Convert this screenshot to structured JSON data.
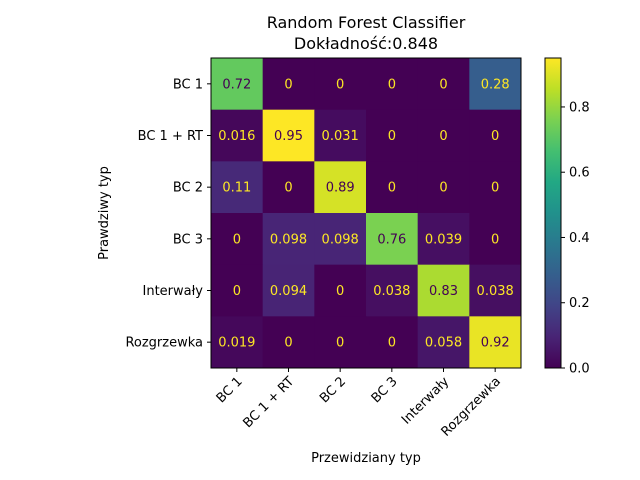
{
  "chart_data": {
    "type": "heatmap",
    "title": "Random Forest Classifier",
    "subtitle": "Dokładność:0.848",
    "xlabel": "Przewidziany typ",
    "ylabel": "Prawdziwy typ",
    "x_categories": [
      "BC 1",
      "BC 1 + RT",
      "BC 2",
      "BC 3",
      "Interwały",
      "Rozgrzewka"
    ],
    "y_categories": [
      "BC 1",
      "BC 1 + RT",
      "BC 2",
      "BC 3",
      "Interwały",
      "Rozgrzewka"
    ],
    "cell_labels": [
      [
        "0.72",
        "0",
        "0",
        "0",
        "0",
        "0.28"
      ],
      [
        "0.016",
        "0.95",
        "0.031",
        "0",
        "0",
        "0"
      ],
      [
        "0.11",
        "0",
        "0.89",
        "0",
        "0",
        "0"
      ],
      [
        "0",
        "0.098",
        "0.098",
        "0.76",
        "0.039",
        "0"
      ],
      [
        "0",
        "0.094",
        "0",
        "0.038",
        "0.83",
        "0.038"
      ],
      [
        "0.019",
        "0",
        "0",
        "0",
        "0.058",
        "0.92"
      ]
    ],
    "values": [
      [
        0.72,
        0,
        0,
        0,
        0,
        0.28
      ],
      [
        0.016,
        0.95,
        0.031,
        0,
        0,
        0
      ],
      [
        0.11,
        0,
        0.89,
        0,
        0,
        0
      ],
      [
        0,
        0.098,
        0.098,
        0.76,
        0.039,
        0
      ],
      [
        0,
        0.094,
        0,
        0.038,
        0.83,
        0.038
      ],
      [
        0.019,
        0,
        0,
        0,
        0.058,
        0.92
      ]
    ],
    "colormap": "viridis",
    "colorbar": {
      "vmin": 0,
      "vmax": 0.95,
      "ticks": [
        0.0,
        0.2,
        0.4,
        0.6,
        0.8
      ],
      "tick_labels": [
        "0.0",
        "0.2",
        "0.4",
        "0.6",
        "0.8"
      ]
    },
    "text_color_dark_cells": "#fde725",
    "text_color_light_cells": "#440154"
  }
}
